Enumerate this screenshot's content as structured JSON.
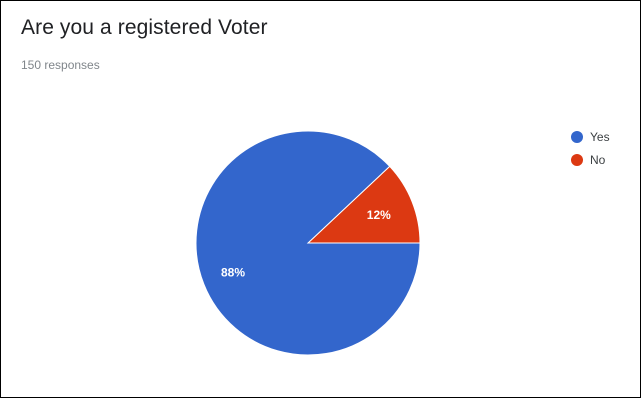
{
  "form": {
    "question": "Are you a registered Voter",
    "responses": "150 responses"
  },
  "colors": {
    "yes": "#3366cc",
    "no": "#dc3912"
  },
  "chart_data": {
    "type": "pie",
    "title": "",
    "slices": [
      {
        "label": "Yes",
        "value": 88,
        "display": "88%",
        "color": "#3366cc"
      },
      {
        "label": "No",
        "value": 12,
        "display": "12%",
        "color": "#dc3912"
      }
    ],
    "legend_position": "right"
  }
}
